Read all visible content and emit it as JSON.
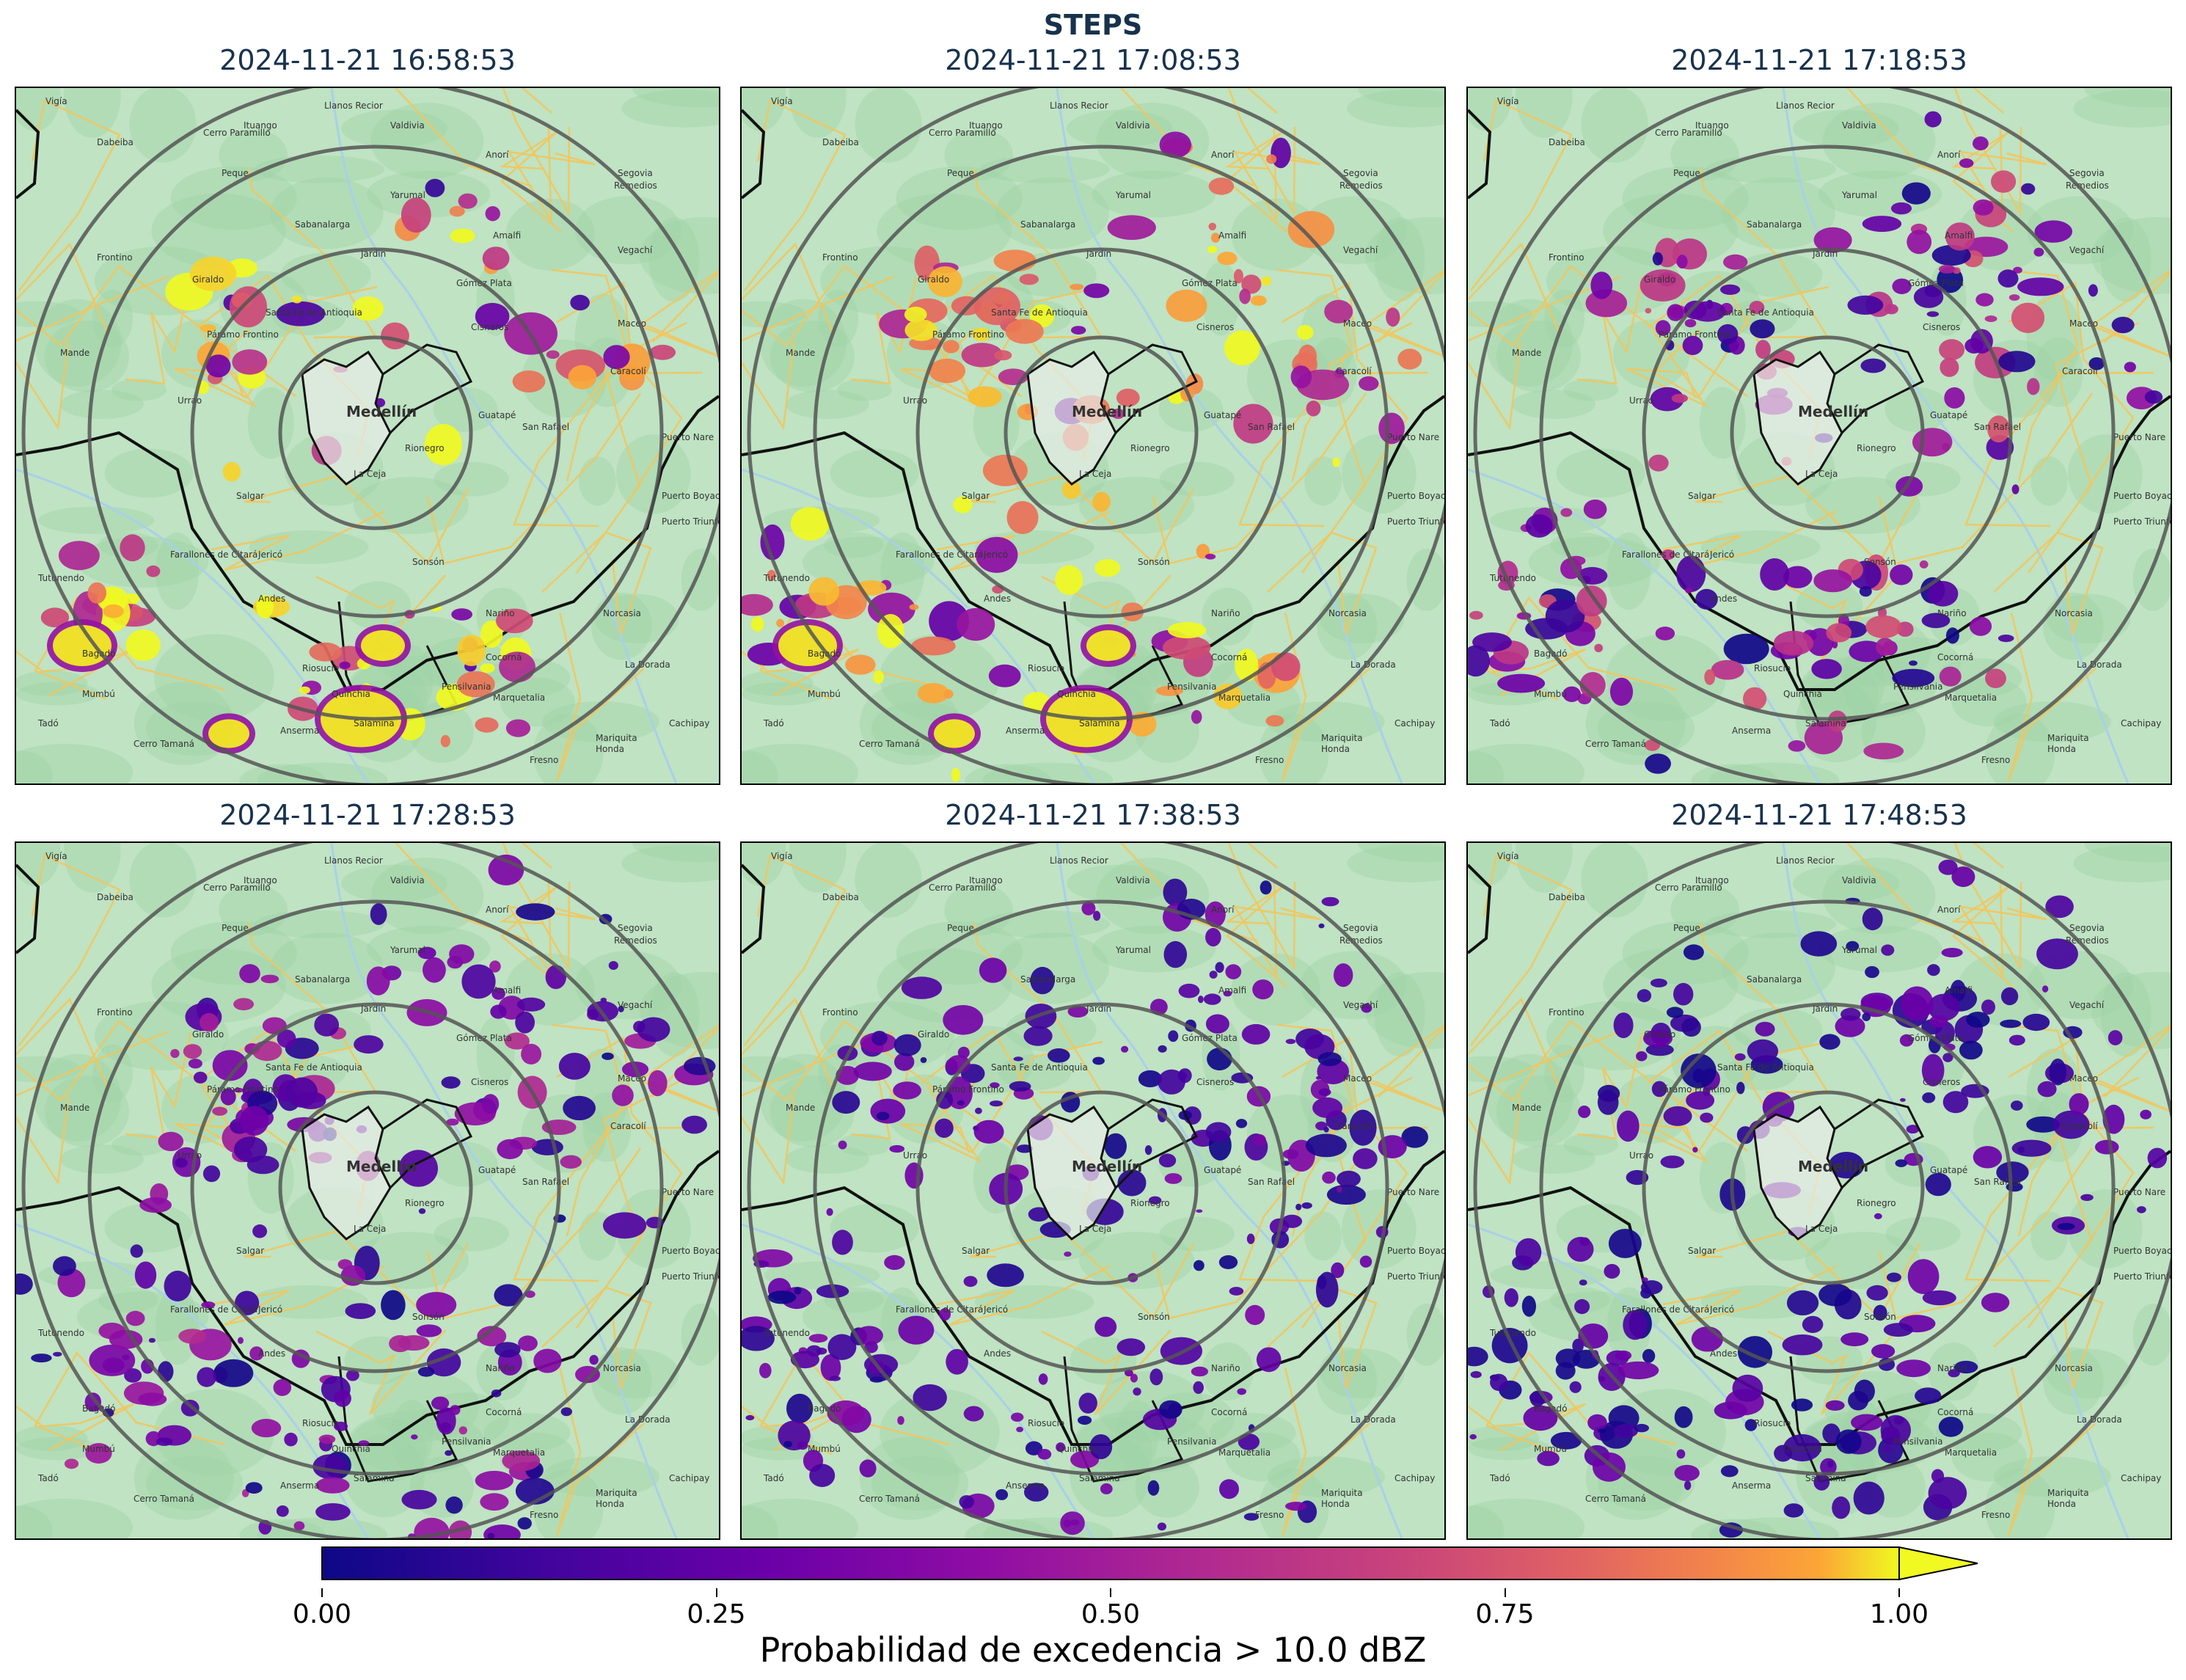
{
  "figure": {
    "title": "STEPS"
  },
  "panels": [
    {
      "title": "2024-11-21 16:58:53",
      "intensity": 1.0,
      "spread": 0.25
    },
    {
      "title": "2024-11-21 17:08:53",
      "intensity": 0.85,
      "spread": 0.45
    },
    {
      "title": "2024-11-21 17:18:53",
      "intensity": 0.6,
      "spread": 0.6
    },
    {
      "title": "2024-11-21 17:28:53",
      "intensity": 0.45,
      "spread": 0.75
    },
    {
      "title": "2024-11-21 17:38:53",
      "intensity": 0.3,
      "spread": 0.85
    },
    {
      "title": "2024-11-21 17:48:53",
      "intensity": 0.25,
      "spread": 0.8
    }
  ],
  "map_labels": {
    "places": [
      "Vigía",
      "Llanos Recior",
      "Ituango",
      "Valdivia",
      "Cerro Paramillo",
      "Dabeiba",
      "Peque",
      "Anorí",
      "Segovia",
      "Remedios",
      "Yarumal",
      "Sabanalarga",
      "Amalfi",
      "Frontino",
      "Jardín",
      "Vegachí",
      "Giraldo",
      "Gómez Plata",
      "Santa Fe de Antioquia",
      "Cisneros",
      "Maceo",
      "Páramo Frontino",
      "Mande",
      "Caracolí",
      "Urrao",
      "Medellín",
      "Guatapé",
      "San Rafael",
      "Puerto Nare",
      "Rionegro",
      "La Ceja",
      "Salgar",
      "Puerto Boyacá",
      "Puerto Triunfo",
      "Farallones de Citará",
      "Jericó",
      "Sonsón",
      "Tutunendo",
      "Andes",
      "Nariño",
      "Norcasia",
      "Bagadó",
      "Riosucio",
      "La Dorada",
      "Pensilvania",
      "Mumbú",
      "Quinchía",
      "Marquetalia",
      "Tadó",
      "Anserma",
      "Cachipay",
      "Cerro Tamaná",
      "Mariquita",
      "Honda",
      "Fresno",
      "Cocorná",
      "Salamina"
    ]
  },
  "colors": {
    "land": "#bfe3c3",
    "mountain": "#9fd3a7",
    "road": "#f2c55c",
    "boundary": "#111111",
    "ring": "#555555"
  },
  "colorbar": {
    "label": "Probabilidad de excedencia > 10.0 dBZ",
    "ticks": [
      "0.00",
      "0.25",
      "0.50",
      "0.75",
      "1.00"
    ],
    "min": 0.0,
    "max": 1.0,
    "colormap": "plasma",
    "extend": "max"
  }
}
